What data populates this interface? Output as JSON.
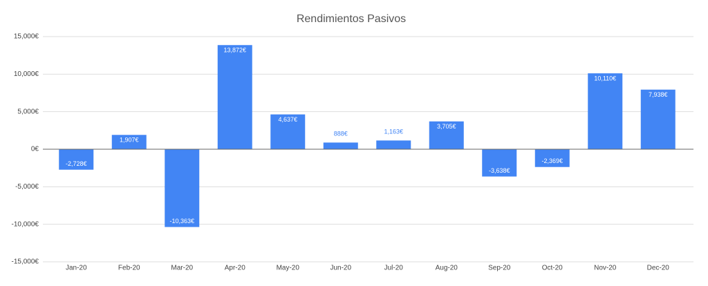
{
  "chart_data": {
    "type": "bar",
    "title": "Rendimientos Pasivos",
    "categories": [
      "Jan-20",
      "Feb-20",
      "Mar-20",
      "Apr-20",
      "May-20",
      "Jun-20",
      "Jul-20",
      "Aug-20",
      "Sep-20",
      "Oct-20",
      "Nov-20",
      "Dec-20"
    ],
    "values": [
      -2728,
      1907,
      -10363,
      13872,
      4637,
      888,
      1163,
      3705,
      -3638,
      -2369,
      10110,
      7938
    ],
    "value_labels": [
      "-2,728€",
      "1,907€",
      "-10,363€",
      "13,872€",
      "4,637€",
      "888€",
      "1,163€",
      "3,705€",
      "-3,638€",
      "-2,369€",
      "10,110€",
      "7,938€"
    ],
    "color": "#4285f4",
    "ylim": [
      -15000,
      15000
    ],
    "yticks": [
      {
        "value": -15000,
        "label": "-15,000€"
      },
      {
        "value": -10000,
        "label": "-10,000€"
      },
      {
        "value": -5000,
        "label": "-5,000€"
      },
      {
        "value": 0,
        "label": "0€"
      },
      {
        "value": 5000,
        "label": "5,000€"
      },
      {
        "value": 10000,
        "label": "10,000€"
      },
      {
        "value": 15000,
        "label": "15,000€"
      }
    ],
    "grid": true
  }
}
